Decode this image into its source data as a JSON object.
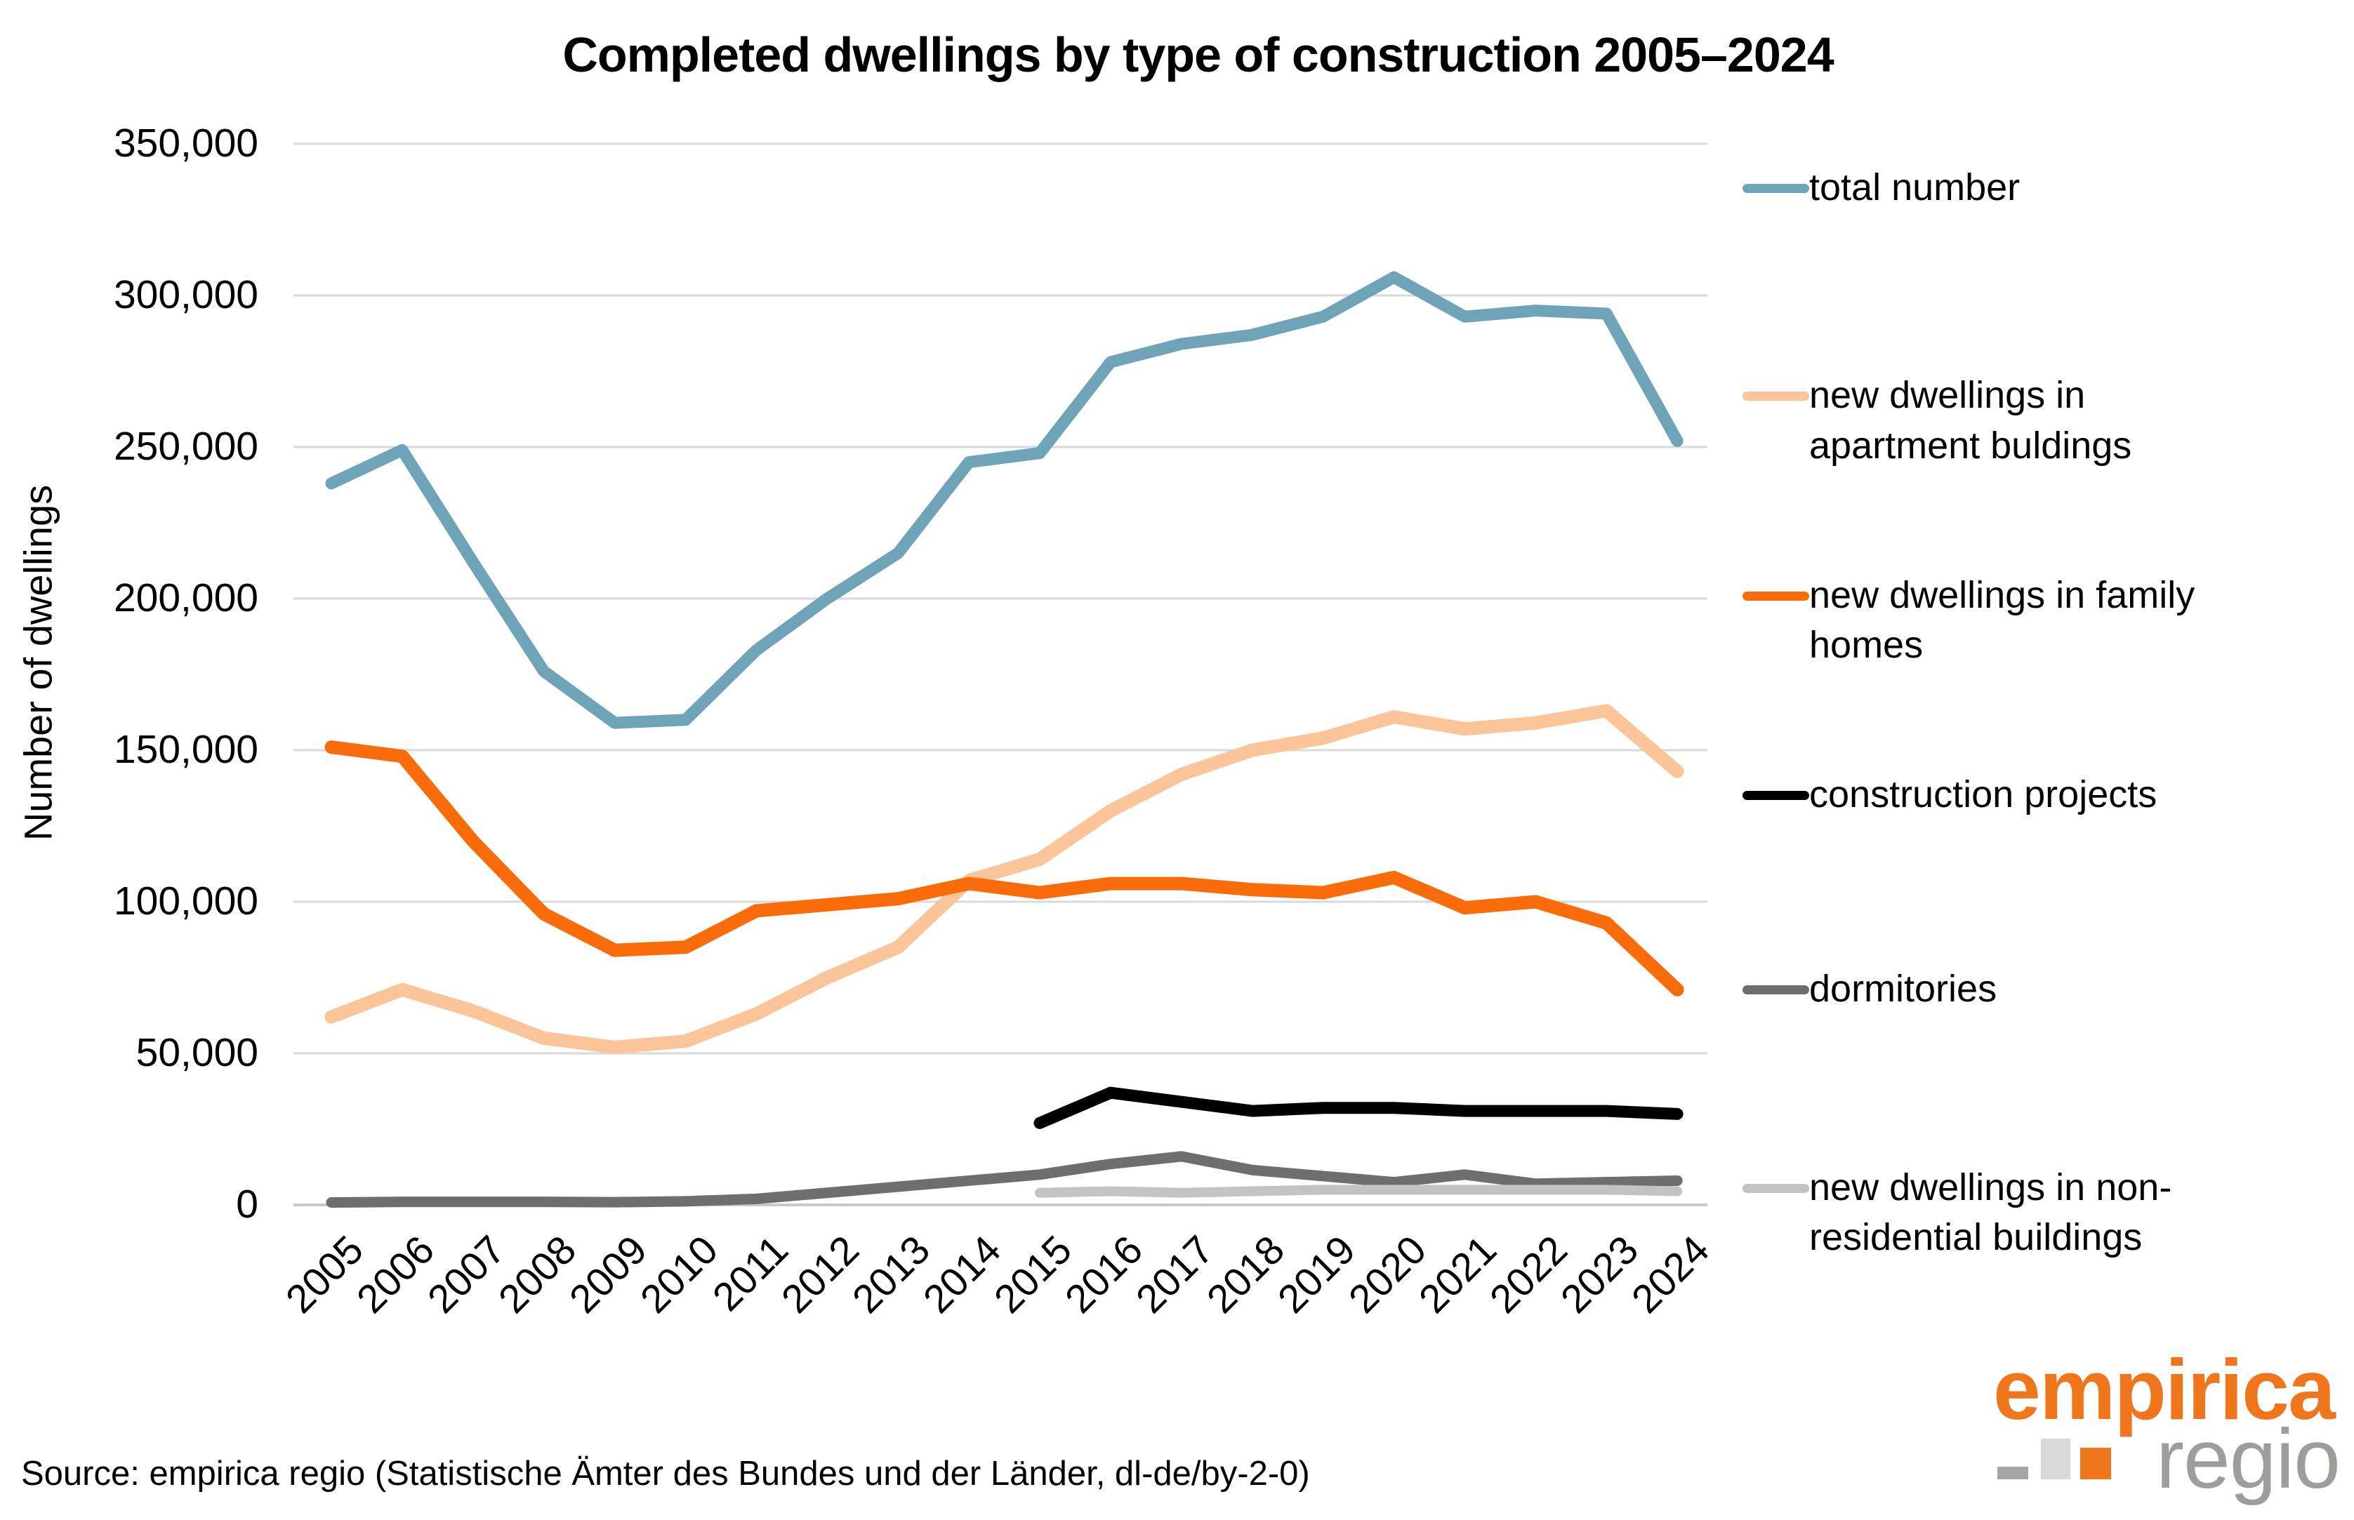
{
  "title": "Completed dwellings by type of construction 2005–2024",
  "y_axis": {
    "label": "Number of dwellings",
    "min": 0,
    "max": 350000,
    "step": 50000
  },
  "x_axis": {
    "years": [
      "2005",
      "2006",
      "2007",
      "2008",
      "2009",
      "2010",
      "2011",
      "2012",
      "2013",
      "2014",
      "2015",
      "2016",
      "2017",
      "2018",
      "2019",
      "2020",
      "2021",
      "2022",
      "2023",
      "2024"
    ]
  },
  "source": "Source: empirica regio (Statistische Ämter des Bundes und der Länder, dl-de/by-2-0)",
  "logo": {
    "primary": "empirica",
    "secondary": "regio",
    "primary_color": "#F0761D",
    "secondary_color": "#9D9D9C",
    "icon_colors": {
      "bar": "#A6A6A6",
      "square_light": "#D9D9D9",
      "square_orange": "#F0761D"
    }
  },
  "colors": {
    "gridline": "#D9D9D9",
    "baseline": "#C9C9C9",
    "background": "#FFFFFF"
  },
  "legend": [
    {
      "label": "total number",
      "color": "#6FA3B8"
    },
    {
      "label": "new dwellings in\napartment buldings",
      "color": "#FBC499"
    },
    {
      "label": "new dwellings in family\nhomes",
      "color": "#FA6B0A"
    },
    {
      "label": "construction projects",
      "color": "#000000"
    },
    {
      "label": "dormitories",
      "color": "#6E6E6E"
    },
    {
      "label": "new dwellings in non-\nresidential buildings",
      "color": "#C3C3C3"
    }
  ],
  "chart_data": {
    "type": "line",
    "title": "Completed dwellings by type of construction 2005–2024",
    "xlabel": "",
    "ylabel": "Number of dwellings",
    "ylim": [
      0,
      350000
    ],
    "grid": true,
    "legend_position": "right",
    "categories": [
      "2005",
      "2006",
      "2007",
      "2008",
      "2009",
      "2010",
      "2011",
      "2012",
      "2013",
      "2014",
      "2015",
      "2016",
      "2017",
      "2018",
      "2019",
      "2020",
      "2021",
      "2022",
      "2023",
      "2024"
    ],
    "series": [
      {
        "name": "total number",
        "color": "#6FA3B8",
        "width": 17,
        "values": [
          238000,
          249000,
          212000,
          176000,
          159000,
          160000,
          183000,
          200000,
          215000,
          245000,
          248000,
          278000,
          284000,
          287000,
          293000,
          306000,
          293000,
          295000,
          294000,
          252000
        ]
      },
      {
        "name": "new dwellings in apartment buldings",
        "color": "#FBC499",
        "width": 19,
        "values": [
          62000,
          71000,
          64000,
          55000,
          52000,
          54000,
          63000,
          75000,
          85000,
          107000,
          114000,
          130000,
          142000,
          150000,
          154000,
          161000,
          157000,
          159000,
          163000,
          143000
        ]
      },
      {
        "name": "new dwellings in family homes",
        "color": "#FA6B0A",
        "width": 19,
        "values": [
          151000,
          148000,
          120000,
          96000,
          84000,
          85000,
          97000,
          99000,
          101000,
          106000,
          103000,
          106000,
          106000,
          104000,
          103000,
          108000,
          98000,
          100000,
          93000,
          71000
        ]
      },
      {
        "name": "construction projects",
        "color": "#000000",
        "width": 17,
        "values": [
          null,
          null,
          null,
          null,
          null,
          null,
          null,
          null,
          null,
          null,
          27000,
          37000,
          34000,
          31000,
          32000,
          32000,
          31000,
          31000,
          31000,
          30000
        ]
      },
      {
        "name": "dormitories",
        "color": "#6E6E6E",
        "width": 15,
        "values": [
          800,
          1000,
          1000,
          1000,
          900,
          1200,
          2000,
          4000,
          6000,
          8000,
          10000,
          13500,
          16000,
          11500,
          9500,
          7500,
          10000,
          7000,
          7500,
          8000
        ]
      },
      {
        "name": "new dwellings in non-residential buildings",
        "color": "#C3C3C3",
        "width": 14,
        "values": [
          null,
          null,
          null,
          null,
          null,
          null,
          null,
          null,
          null,
          null,
          4000,
          4500,
          4000,
          4500,
          5000,
          5000,
          5000,
          5000,
          5000,
          4500
        ]
      }
    ]
  }
}
